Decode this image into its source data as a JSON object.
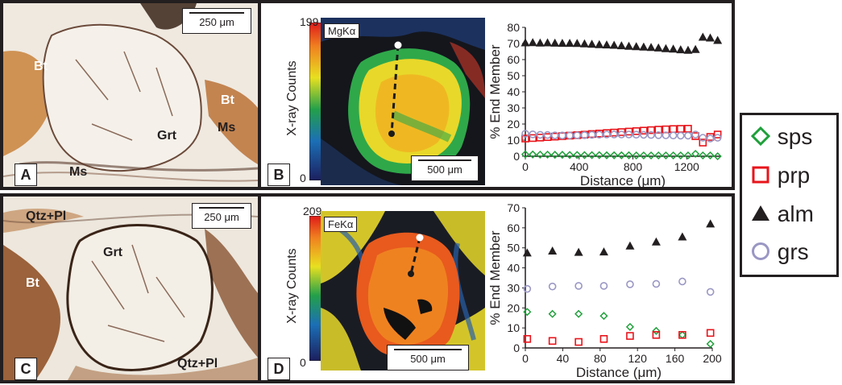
{
  "panels": {
    "A": {
      "tag": "A",
      "scalebar": "250 μm",
      "labels": {
        "bt": "Bt",
        "bt2": "Bt",
        "grt": "Grt",
        "ms": "Ms",
        "ms2": "Ms"
      }
    },
    "B": {
      "tag": "B",
      "colorbar_max": "199",
      "colorbar_min": "0",
      "colorbar_label": "X-ray Counts",
      "map_label": "MgKα",
      "scalebar": "500 μm"
    },
    "C": {
      "tag": "C",
      "scalebar": "250 μm",
      "labels": {
        "qtzpl": "Qtz+Pl",
        "grt": "Grt",
        "bt": "Bt",
        "qtzpl2": "Qtz+Pl"
      }
    },
    "D": {
      "tag": "D",
      "colorbar_max": "209",
      "colorbar_min": "0",
      "colorbar_label": "X-ray Counts",
      "map_label": "FeKα",
      "scalebar": "500 μm"
    }
  },
  "legend": {
    "sps": "sps",
    "prp": "prp",
    "alm": "alm",
    "grs": "grs"
  },
  "colors": {
    "sps": "#1fa03a",
    "prp": "#e8141b",
    "alm": "#231f20",
    "grs": "#9a97c4",
    "frame": "#231f20"
  },
  "chart_data": [
    {
      "type": "scatter",
      "panel": "B",
      "xlabel": "Distance (μm)",
      "ylabel": "% End Member",
      "xlim": [
        0,
        1450
      ],
      "ylim": [
        0,
        80
      ],
      "xticks": [
        0,
        400,
        800,
        1200
      ],
      "yticks": [
        0,
        10,
        20,
        30,
        40,
        50,
        60,
        70,
        80
      ],
      "series": [
        {
          "name": "alm",
          "x": [
            0,
            55,
            110,
            165,
            220,
            275,
            330,
            385,
            440,
            495,
            550,
            605,
            660,
            715,
            770,
            825,
            880,
            935,
            990,
            1045,
            1100,
            1155,
            1210,
            1265,
            1320,
            1375,
            1430
          ],
          "y": [
            70.5,
            70.6,
            70.4,
            70.5,
            70.3,
            70.2,
            70.2,
            70.1,
            69.9,
            69.6,
            69.4,
            69.2,
            69.0,
            68.7,
            68.4,
            68.1,
            67.9,
            67.6,
            67.3,
            66.9,
            66.6,
            66.2,
            65.9,
            66.4,
            74.0,
            73.5,
            72.0
          ]
        },
        {
          "name": "prp",
          "x": [
            0,
            55,
            110,
            165,
            220,
            275,
            330,
            385,
            440,
            495,
            550,
            605,
            660,
            715,
            770,
            825,
            880,
            935,
            990,
            1045,
            1100,
            1155,
            1210,
            1265,
            1320,
            1375,
            1430
          ],
          "y": [
            11.0,
            11.3,
            11.6,
            11.9,
            12.2,
            12.5,
            12.8,
            13.1,
            13.4,
            13.8,
            14.1,
            14.4,
            14.7,
            15.0,
            15.3,
            15.6,
            15.9,
            16.2,
            16.5,
            16.7,
            16.9,
            17.0,
            17.1,
            12.5,
            8.5,
            12.0,
            13.5
          ]
        },
        {
          "name": "grs",
          "x": [
            0,
            55,
            110,
            165,
            220,
            275,
            330,
            385,
            440,
            495,
            550,
            605,
            660,
            715,
            770,
            825,
            880,
            935,
            990,
            1045,
            1100,
            1155,
            1210,
            1265,
            1320,
            1375,
            1430
          ],
          "y": [
            14.0,
            13.6,
            13.3,
            13.2,
            13.0,
            12.9,
            12.9,
            13.0,
            13.1,
            13.3,
            13.4,
            13.5,
            13.5,
            13.5,
            13.5,
            13.4,
            13.3,
            13.2,
            13.1,
            13.0,
            12.9,
            12.8,
            12.8,
            13.5,
            11.5,
            11.0,
            11.5
          ]
        },
        {
          "name": "sps",
          "x": [
            0,
            55,
            110,
            165,
            220,
            275,
            330,
            385,
            440,
            495,
            550,
            605,
            660,
            715,
            770,
            825,
            880,
            935,
            990,
            1045,
            1100,
            1155,
            1210,
            1265,
            1320,
            1375,
            1430
          ],
          "y": [
            1.2,
            1.1,
            1.0,
            1.0,
            0.9,
            0.9,
            0.8,
            0.8,
            0.7,
            0.7,
            0.7,
            0.6,
            0.6,
            0.6,
            0.6,
            0.5,
            0.5,
            0.5,
            0.5,
            0.5,
            0.5,
            0.5,
            0.5,
            1.5,
            0.5,
            0.5,
            0.0
          ]
        }
      ]
    },
    {
      "type": "scatter",
      "panel": "D",
      "xlabel": "Distance (μm)",
      "ylabel": "% End Member",
      "xlim": [
        0,
        200
      ],
      "ylim": [
        0,
        70
      ],
      "xticks": [
        0,
        40,
        80,
        120,
        160,
        200
      ],
      "yticks": [
        0,
        10,
        20,
        30,
        40,
        50,
        60,
        70
      ],
      "series": [
        {
          "name": "alm",
          "x": [
            2,
            29,
            57,
            84,
            112,
            140,
            168,
            198
          ],
          "y": [
            47.5,
            48.5,
            47.8,
            48.0,
            51.0,
            53.0,
            55.5,
            62.0
          ]
        },
        {
          "name": "grs",
          "x": [
            2,
            29,
            57,
            84,
            112,
            140,
            168,
            198
          ],
          "y": [
            29.5,
            30.7,
            31.0,
            31.0,
            31.8,
            32.0,
            33.2,
            28.0
          ]
        },
        {
          "name": "sps",
          "x": [
            2,
            29,
            57,
            84,
            112,
            140,
            168,
            198
          ],
          "y": [
            18.0,
            17.0,
            17.0,
            16.0,
            10.5,
            8.5,
            6.5,
            2.0
          ]
        },
        {
          "name": "prp",
          "x": [
            2,
            29,
            57,
            84,
            112,
            140,
            168,
            198
          ],
          "y": [
            4.5,
            3.5,
            3.0,
            4.5,
            6.0,
            6.5,
            6.5,
            7.5
          ]
        }
      ]
    }
  ]
}
